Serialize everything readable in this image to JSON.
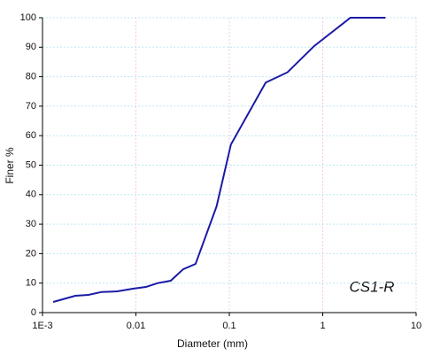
{
  "chart_data": {
    "type": "line",
    "x_label": "Diameter (mm)",
    "y_label": "Finer  %",
    "annotation": "CS1-R",
    "x_log": true,
    "grid": true,
    "series": [
      {
        "color": "#1a1aa6",
        "x": [
          0.0013,
          0.00224,
          0.0031,
          0.0043,
          0.0063,
          0.0093,
          0.0128,
          0.0171,
          0.0236,
          0.032,
          0.0435,
          0.073,
          0.104,
          0.245,
          0.42,
          0.81,
          1.98,
          4.7
        ],
        "values": [
          3.6,
          5.7,
          6,
          7,
          7.2,
          8.1,
          8.7,
          10,
          10.8,
          14.7,
          16.5,
          36,
          57,
          78,
          81.5,
          90.4,
          100,
          100
        ]
      }
    ],
    "xlim": [
      0.001,
      10
    ],
    "xticks": [
      {
        "value": 0.001,
        "label": "1E-3"
      },
      0.01,
      0.1,
      1,
      10
    ],
    "ylim": [
      0,
      100
    ],
    "yticks": [
      0,
      10,
      20,
      30,
      40,
      50,
      60,
      70,
      80,
      90,
      100
    ]
  }
}
